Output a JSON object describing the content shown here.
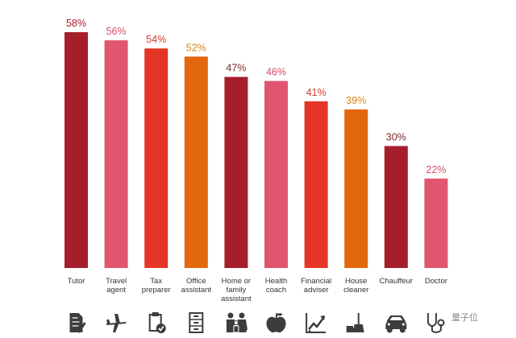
{
  "chart_data": {
    "type": "bar",
    "categories": [
      "Tutor",
      "Travel agent",
      "Tax preparer",
      "Office assistant",
      "Home or family assistant",
      "Health coach",
      "Financial adviser",
      "House cleaner",
      "Chauffeur",
      "Doctor"
    ],
    "category_lines": [
      [
        "Tutor"
      ],
      [
        "Travel",
        "agent"
      ],
      [
        "Tax",
        "preparer"
      ],
      [
        "Office",
        "assistant"
      ],
      [
        "Home or",
        "family",
        "assistant"
      ],
      [
        "Health",
        "coach"
      ],
      [
        "Financial",
        "adviser"
      ],
      [
        "House",
        "cleaner"
      ],
      [
        "Chauffeur"
      ],
      [
        "Doctor"
      ]
    ],
    "values": [
      58,
      56,
      54,
      52,
      47,
      46,
      41,
      39,
      30,
      22
    ],
    "value_labels": [
      "58%",
      "56%",
      "54%",
      "52%",
      "47%",
      "46%",
      "41%",
      "39%",
      "30%",
      "22%"
    ],
    "bar_colors": [
      "#a61e2b",
      "#e05570",
      "#e43526",
      "#e3670d",
      "#a61e2b",
      "#e05570",
      "#e43526",
      "#e3670d",
      "#a61e2b",
      "#e05570"
    ],
    "label_colors": [
      "#a61e2b",
      "#d84a66",
      "#d63a2b",
      "#d9861a",
      "#7a2a2a",
      "#d84a66",
      "#d63a2b",
      "#d9861a",
      "#7a2a2a",
      "#d84a66"
    ],
    "icons": [
      "document-pencil-icon",
      "airplane-icon",
      "clipboard-check-icon",
      "filing-cabinet-icon",
      "family-icon",
      "apple-icon",
      "growth-chart-icon",
      "broom-dustpan-icon",
      "car-icon",
      "stethoscope-icon"
    ],
    "ylim": [
      0,
      58
    ],
    "grid": false,
    "legend": "none"
  },
  "watermark": "量子位"
}
